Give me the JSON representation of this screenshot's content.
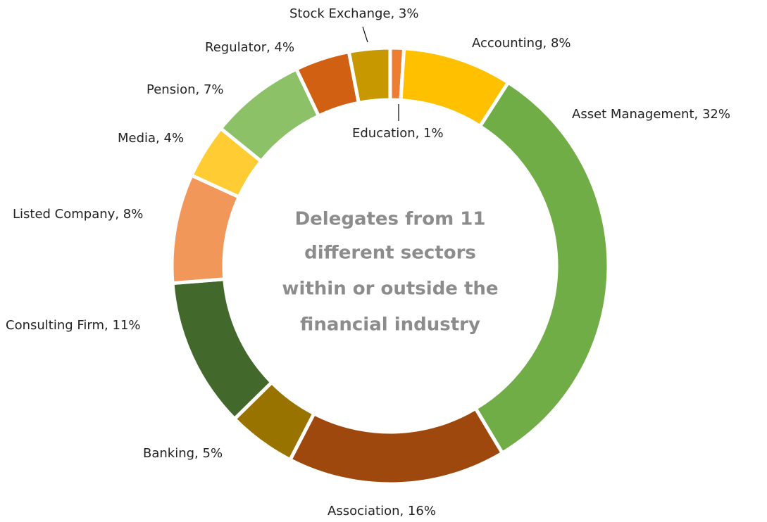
{
  "chart_data": {
    "type": "donut",
    "center_text": [
      "Delegates from 11",
      "different sectors",
      "within or outside the",
      "financial industry"
    ],
    "categories": [
      "Education, 1%",
      "Accounting, 8%",
      "Asset Management, 32%",
      "Association,  16%",
      "Banking, 5%",
      "Consulting Firm, 11%",
      "Listed Company, 8%",
      "Media, 4%",
      "Pension,  7%",
      "Regulator, 4%",
      "Stock Exchange, 3%"
    ],
    "values": [
      1,
      8,
      32,
      16,
      5,
      11,
      8,
      4,
      7,
      4,
      3
    ],
    "colors": [
      "#ed7d31",
      "#ffc000",
      "#70ad47",
      "#9e480e",
      "#997300",
      "#43682b",
      "#f1975a",
      "#ffcd33",
      "#8cc168",
      "#d26012",
      "#c89800"
    ]
  }
}
